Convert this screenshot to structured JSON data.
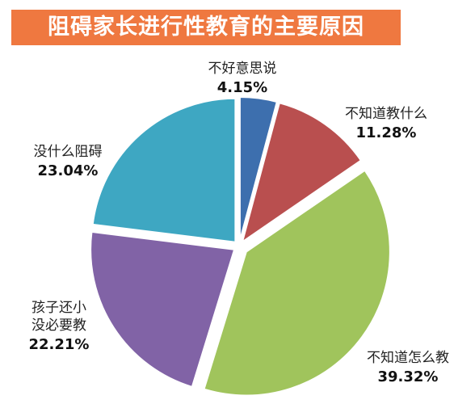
{
  "chart_data": {
    "type": "pie",
    "title": "阻碍家长进行性教育的主要原因",
    "slices": [
      {
        "label": [
          "不好意思说"
        ],
        "value": 4.15,
        "display": "4.15%",
        "color": "#3d6fae"
      },
      {
        "label": [
          "不知道教什么"
        ],
        "value": 11.28,
        "display": "11.28%",
        "color": "#b94f4f"
      },
      {
        "label": [
          "不知道怎么教"
        ],
        "value": 39.32,
        "display": "39.32%",
        "color": "#a0c45c"
      },
      {
        "label": [
          "孩子还小",
          "没必要教"
        ],
        "value": 22.21,
        "display": "22.21%",
        "color": "#8163a6"
      },
      {
        "label": [
          "没什么阻碍"
        ],
        "value": 23.04,
        "display": "23.04%",
        "color": "#3ea7c2"
      }
    ],
    "title_color": "#ef7840"
  }
}
